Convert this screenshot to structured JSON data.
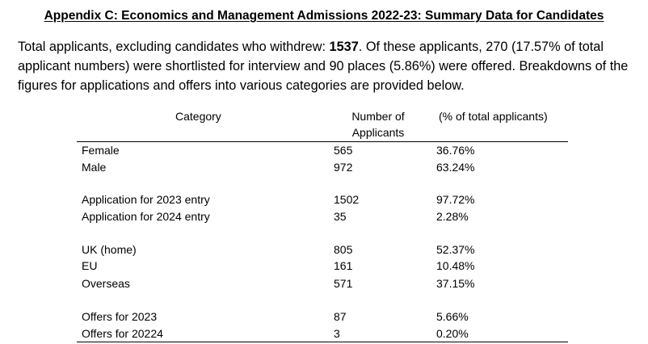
{
  "document": {
    "title": "Appendix C: Economics and Management Admissions 2022-23: Summary Data for Candidates",
    "intro": {
      "before_total": "Total applicants, excluding candidates who withdrew: ",
      "total": "1537",
      "after_total": ". Of these applicants, 270 (17.57% of total applicant numbers) were shortlisted for interview and 90 places (5.86%) were offered. Breakdowns of the figures for applications and offers into various categories are provided below."
    }
  },
  "table": {
    "headers": {
      "category": "Category",
      "number_line1": "Number of",
      "number_line2": "Applicants",
      "percent": "(% of total applicants)"
    },
    "rows": [
      {
        "label": "Female",
        "number": "565",
        "percent": "36.76%"
      },
      {
        "label": "Male",
        "number": "972",
        "percent": "63.24%"
      },
      {
        "label": "Application for 2023 entry",
        "number": "1502",
        "percent": "97.72%"
      },
      {
        "label": "Application for 2024 entry",
        "number": "35",
        "percent": "2.28%"
      },
      {
        "label": "UK (home)",
        "number": "805",
        "percent": "52.37%"
      },
      {
        "label": "EU",
        "number": "161",
        "percent": "10.48%"
      },
      {
        "label": "Overseas",
        "number": "571",
        "percent": "37.15%"
      },
      {
        "label": "Offers for 2023",
        "number": "87",
        "percent": "5.66%"
      },
      {
        "label": "Offers for 20224",
        "number": "3",
        "percent": "0.20%"
      }
    ]
  }
}
